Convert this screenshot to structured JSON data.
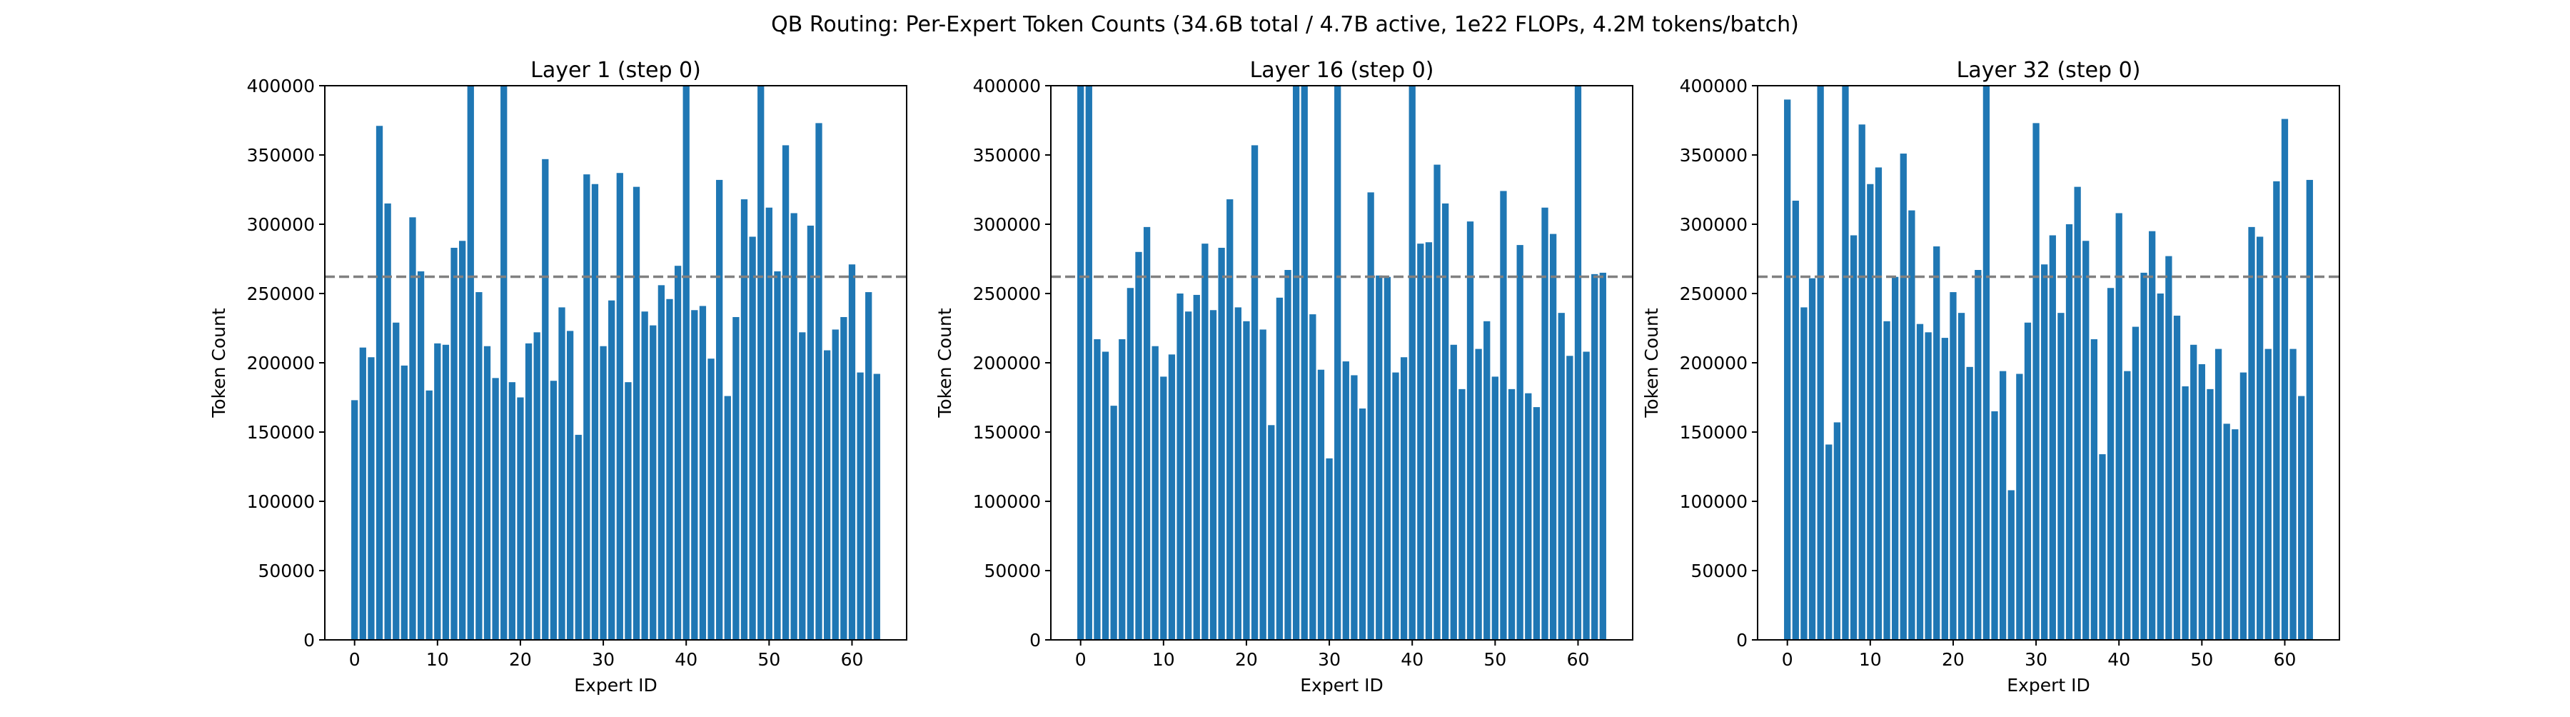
{
  "suptitle": "QB Routing: Per-Expert Token Counts (34.6B total / 4.7B active, 1e22 FLOPs, 4.2M tokens/batch)",
  "chart_data": [
    {
      "type": "bar",
      "title": "Layer 1 (step 0)",
      "xlabel": "Expert ID",
      "ylabel": "Token Count",
      "ylim": [
        0,
        400000
      ],
      "yticks": [
        0,
        50000,
        100000,
        150000,
        200000,
        250000,
        300000,
        350000,
        400000
      ],
      "xticks": [
        0,
        10,
        20,
        30,
        40,
        50,
        60
      ],
      "grid": false,
      "bar_color": "#1f77b4",
      "reference_line": {
        "value": 262144,
        "style": "dashed",
        "color": "#808080"
      },
      "values": [
        173000,
        211000,
        204000,
        371000,
        315000,
        229000,
        198000,
        305000,
        266000,
        180000,
        214000,
        213000,
        283000,
        288000,
        400000,
        251000,
        212000,
        189000,
        400000,
        186000,
        175000,
        214000,
        222000,
        347000,
        187000,
        240000,
        223000,
        148000,
        336000,
        329000,
        212000,
        245000,
        337000,
        186000,
        327000,
        237000,
        227000,
        256000,
        246000,
        270000,
        400000,
        238000,
        241000,
        203000,
        332000,
        176000,
        233000,
        318000,
        291000,
        400000,
        312000,
        266000,
        357000,
        308000,
        222000,
        299000,
        373000,
        209000,
        224000,
        233000,
        271000,
        193000,
        251000,
        192000
      ]
    },
    {
      "type": "bar",
      "title": "Layer 16 (step 0)",
      "xlabel": "Expert ID",
      "ylabel": "Token Count",
      "ylim": [
        0,
        400000
      ],
      "yticks": [
        0,
        50000,
        100000,
        150000,
        200000,
        250000,
        300000,
        350000,
        400000
      ],
      "xticks": [
        0,
        10,
        20,
        30,
        40,
        50,
        60
      ],
      "grid": false,
      "bar_color": "#1f77b4",
      "reference_line": {
        "value": 262144,
        "style": "dashed",
        "color": "#808080"
      },
      "values": [
        400000,
        400000,
        217000,
        208000,
        169000,
        217000,
        254000,
        280000,
        298000,
        212000,
        190000,
        206000,
        250000,
        237000,
        249000,
        286000,
        238000,
        283000,
        318000,
        240000,
        230000,
        357000,
        224000,
        155000,
        247000,
        267000,
        400000,
        400000,
        235000,
        195000,
        131000,
        400000,
        201000,
        191000,
        167000,
        323000,
        263000,
        262000,
        193000,
        204000,
        400000,
        286000,
        287000,
        343000,
        315000,
        213000,
        181000,
        302000,
        210000,
        230000,
        190000,
        324000,
        181000,
        285000,
        178000,
        168000,
        312000,
        293000,
        236000,
        205000,
        400000,
        208000,
        264000,
        265000
      ]
    },
    {
      "type": "bar",
      "title": "Layer 32 (step 0)",
      "xlabel": "Expert ID",
      "ylabel": "Token Count",
      "ylim": [
        0,
        400000
      ],
      "yticks": [
        0,
        50000,
        100000,
        150000,
        200000,
        250000,
        300000,
        350000,
        400000
      ],
      "xticks": [
        0,
        10,
        20,
        30,
        40,
        50,
        60
      ],
      "grid": false,
      "bar_color": "#1f77b4",
      "reference_line": {
        "value": 262144,
        "style": "dashed",
        "color": "#808080"
      },
      "values": [
        390000,
        317000,
        240000,
        261000,
        400000,
        141000,
        157000,
        400000,
        292000,
        372000,
        329000,
        341000,
        230000,
        262000,
        351000,
        310000,
        228000,
        222000,
        284000,
        218000,
        251000,
        236000,
        197000,
        267000,
        400000,
        165000,
        194000,
        108000,
        192000,
        229000,
        373000,
        271000,
        292000,
        236000,
        300000,
        327000,
        288000,
        217000,
        134000,
        254000,
        308000,
        194000,
        226000,
        265000,
        295000,
        250000,
        277000,
        234000,
        183000,
        213000,
        199000,
        181000,
        210000,
        156000,
        152000,
        193000,
        298000,
        291000,
        210000,
        331000,
        376000,
        210000,
        176000,
        332000
      ]
    }
  ]
}
